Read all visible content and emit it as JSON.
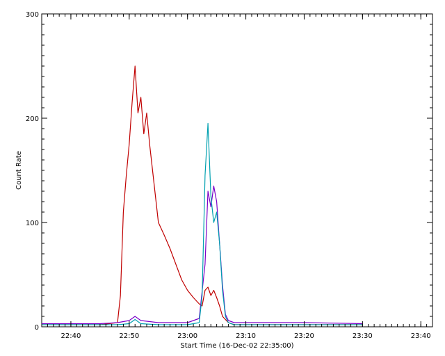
{
  "chart_data": {
    "type": "line",
    "title": "",
    "xlabel": "Start Time (16-Dec-02 22:35:00)",
    "ylabel": "Count Rate",
    "x_unit": "time",
    "xlim": [
      "22:35",
      "23:42"
    ],
    "ylim": [
      0,
      300
    ],
    "x_ticks": [
      "22:40",
      "22:50",
      "23:00",
      "23:10",
      "23:20",
      "23:30",
      "23:40"
    ],
    "y_ticks": [
      0,
      100,
      200,
      300
    ],
    "grid": false,
    "legend": "none",
    "series": [
      {
        "color": "#c00000",
        "x": [
          "22:35",
          "22:40",
          "22:45",
          "22:48",
          "22:48:30",
          "22:49",
          "22:49:30",
          "22:50",
          "22:50:30",
          "22:51",
          "22:51:30",
          "22:52",
          "22:52:30",
          "22:53",
          "22:53:30",
          "22:54",
          "22:54:30",
          "22:55",
          "22:56",
          "22:57",
          "22:58",
          "22:59",
          "23:00",
          "23:01",
          "23:02",
          "23:02:30",
          "23:03",
          "23:03:30",
          "23:04",
          "23:04:30",
          "23:05",
          "23:05:30",
          "23:06",
          "23:07",
          "23:08",
          "23:10",
          "23:20",
          "23:30"
        ],
        "y": [
          2,
          2,
          2,
          4,
          30,
          110,
          145,
          175,
          215,
          250,
          205,
          220,
          185,
          205,
          175,
          150,
          125,
          100,
          88,
          75,
          60,
          45,
          35,
          28,
          22,
          20,
          35,
          38,
          30,
          35,
          28,
          20,
          10,
          4,
          2,
          2,
          2,
          2
        ]
      },
      {
        "color": "#7b00c8",
        "x": [
          "22:35",
          "22:45",
          "22:48",
          "22:50",
          "22:51",
          "22:52",
          "22:55",
          "23:00",
          "23:02",
          "23:03",
          "23:03:30",
          "23:04",
          "23:04:30",
          "23:05",
          "23:05:30",
          "23:06",
          "23:06:30",
          "23:07",
          "23:08",
          "23:10",
          "23:20",
          "23:30"
        ],
        "y": [
          3,
          3,
          4,
          6,
          10,
          6,
          4,
          4,
          8,
          60,
          130,
          115,
          135,
          120,
          80,
          40,
          12,
          6,
          4,
          4,
          4,
          3
        ]
      },
      {
        "color": "#00a0b0",
        "x": [
          "22:35",
          "22:45",
          "22:48",
          "22:50",
          "22:51",
          "22:52",
          "22:55",
          "23:00",
          "23:02",
          "23:02:30",
          "23:03",
          "23:03:30",
          "23:04",
          "23:04:30",
          "23:05",
          "23:05:30",
          "23:06",
          "23:06:30",
          "23:07",
          "23:08",
          "23:10",
          "23:20",
          "23:30"
        ],
        "y": [
          2,
          2,
          2,
          3,
          7,
          3,
          2,
          2,
          4,
          30,
          145,
          195,
          125,
          100,
          110,
          80,
          35,
          10,
          4,
          2,
          2,
          2,
          2
        ]
      }
    ]
  }
}
